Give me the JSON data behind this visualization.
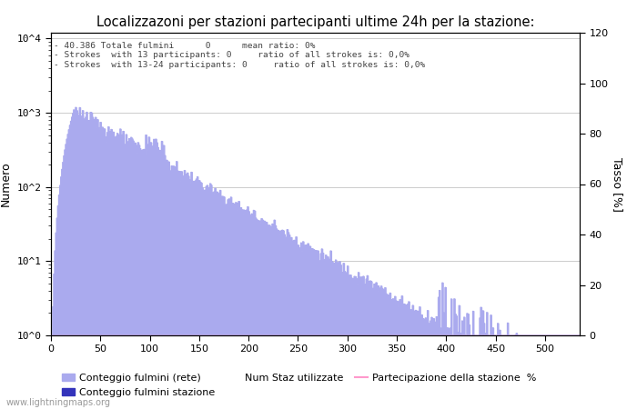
{
  "title": "Localizzazoni per stazioni partecipanti ultime 24h per la stazione:",
  "ylabel_left": "Numero",
  "ylabel_right": "Tasso [%]",
  "annotation_lines": [
    "40.386 Totale fulmini      0      mean ratio: 0%",
    "Strokes  with 13 participants: 0     ratio of all strokes is: 0,0%",
    "Strokes  with 13-24 participants: 0     ratio of all strokes is: 0,0%"
  ],
  "xlim": [
    0,
    535
  ],
  "ylim_right": [
    0,
    120
  ],
  "yticks_right": [
    0,
    20,
    40,
    60,
    80,
    100,
    120
  ],
  "xticks": [
    0,
    50,
    100,
    150,
    200,
    250,
    300,
    350,
    400,
    450,
    500
  ],
  "bar_color_light": "#aaaaee",
  "bar_color_dark": "#3333bb",
  "line_color_pink": "#ff99cc",
  "legend_label_rete": "Conteggio fulmini (rete)",
  "legend_label_stazione": "Conteggio fulmini stazione",
  "legend_label_numstaz": "Num Staz utilizzate",
  "legend_label_partecipazione": "Partecipazione della stazione  %",
  "watermark": "www.lightningmaps.org",
  "n_stations": 535,
  "background_color": "#ffffff",
  "grid_color": "#cccccc",
  "annotation_color": "#444444",
  "tick_label_size": 8,
  "title_fontsize": 10.5
}
